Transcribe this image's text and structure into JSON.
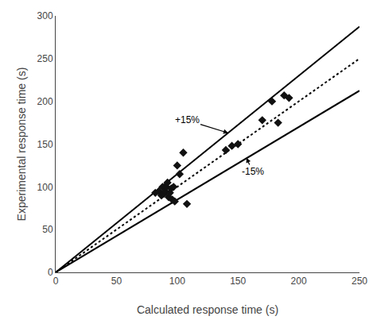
{
  "chart_data": {
    "type": "scatter",
    "xlabel": "Calculated response time (s)",
    "ylabel": "Experimental response time (s)",
    "x": [
      82,
      85,
      87,
      88,
      89,
      90,
      91,
      92,
      93,
      94,
      95,
      96,
      97,
      98,
      100,
      102,
      105,
      108,
      140,
      145,
      150,
      170,
      178,
      183,
      188,
      192
    ],
    "values": [
      93,
      95,
      90,
      100,
      92,
      95,
      100,
      105,
      88,
      93,
      98,
      85,
      100,
      83,
      125,
      115,
      140,
      80,
      143,
      148,
      150,
      178,
      200,
      175,
      207,
      204
    ],
    "color": "#111111",
    "marker": "diamond",
    "lines": [
      {
        "x": [
          0,
          250
        ],
        "values": [
          0,
          287.5
        ],
        "color": "#000000",
        "line_style": "solid"
      },
      {
        "x": [
          0,
          250
        ],
        "values": [
          0,
          250
        ],
        "color": "#000000",
        "line_style": "dotted"
      },
      {
        "x": [
          0,
          250
        ],
        "values": [
          0,
          212.5
        ],
        "color": "#000000",
        "line_style": "solid"
      }
    ],
    "annotations": [
      {
        "text": "+15%",
        "x": 142,
        "y": 163,
        "text_x": 108,
        "text_y": 178
      },
      {
        "text": "-15%",
        "x": 157,
        "y": 134,
        "text_x": 162,
        "text_y": 118
      }
    ],
    "xlim": [
      0,
      250
    ],
    "ylim": [
      0,
      300
    ],
    "xticks": [
      0,
      50,
      100,
      150,
      200,
      250
    ],
    "yticks": [
      0,
      50,
      100,
      150,
      200,
      250,
      300
    ],
    "grid": false
  }
}
